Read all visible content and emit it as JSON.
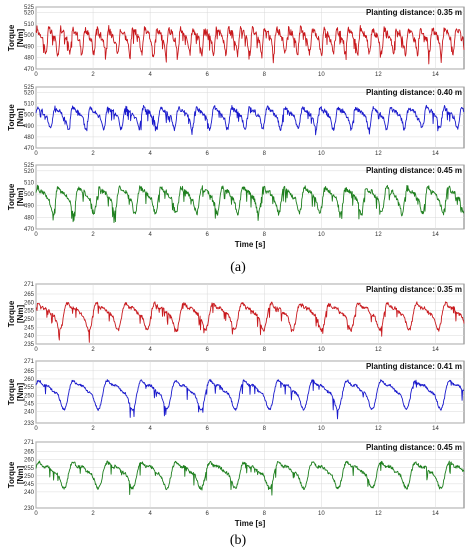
{
  "chart_data": [
    {
      "type": "line",
      "group": "a",
      "ylabel": "Torque\n[Nm]",
      "xlabel": "",
      "annotation": "Planting distance: 0.35 m",
      "xlim": [
        0,
        15
      ],
      "ylim": [
        470,
        525
      ],
      "yticks": [
        470,
        480,
        490,
        500,
        510,
        520,
        525
      ],
      "xticks": [
        0,
        2,
        4,
        6,
        8,
        10,
        12,
        14
      ],
      "grid": true,
      "series": [
        {
          "color": "#c8191d",
          "base": 497,
          "amp": 14,
          "period": 0.42,
          "noise": 6,
          "spike": 0.1
        }
      ]
    },
    {
      "type": "line",
      "group": "a",
      "ylabel": "Torque\n[Nm]",
      "xlabel": "",
      "annotation": "Planting distance: 0.40 m",
      "xlim": [
        0,
        15
      ],
      "ylim": [
        470,
        525
      ],
      "yticks": [
        470,
        480,
        490,
        500,
        510,
        520,
        525
      ],
      "xticks": [
        0,
        2,
        4,
        6,
        8,
        10,
        12,
        14
      ],
      "grid": true,
      "series": [
        {
          "color": "#1a1acc",
          "base": 499,
          "amp": 12,
          "period": 0.62,
          "noise": 4,
          "spike": 0.08
        }
      ]
    },
    {
      "type": "line",
      "group": "a",
      "ylabel": "Torque\n[Nm]",
      "xlabel": "Time [s]",
      "annotation": "Planting distance: 0.45 m",
      "xlim": [
        0,
        15
      ],
      "ylim": [
        470,
        525
      ],
      "yticks": [
        470,
        480,
        490,
        500,
        510,
        520,
        525
      ],
      "xticks": [
        0,
        2,
        4,
        6,
        8,
        10,
        12,
        14
      ],
      "grid": true,
      "series": [
        {
          "color": "#1e7f1e",
          "base": 497,
          "amp": 14,
          "period": 0.72,
          "noise": 4,
          "spike": 0.12
        }
      ]
    },
    {
      "type": "line",
      "group": "b",
      "ylabel": "Torque\n[Nm]",
      "xlabel": "",
      "annotation": "Planting distance: 0.35 m",
      "xlim": [
        0,
        15
      ],
      "ylim": [
        235,
        271
      ],
      "yticks": [
        235,
        240,
        245,
        250,
        255,
        260,
        265,
        271
      ],
      "xticks": [
        0,
        2,
        4,
        6,
        8,
        10,
        12,
        14
      ],
      "grid": true,
      "series": [
        {
          "color": "#c8191d",
          "base": 253,
          "amp": 10,
          "period": 1.02,
          "noise": 2,
          "spike": 0.06
        }
      ]
    },
    {
      "type": "line",
      "group": "b",
      "ylabel": "Torque\n[Nm]",
      "xlabel": "",
      "annotation": "Planting distance: 0.41 m",
      "xlim": [
        0,
        15
      ],
      "ylim": [
        233,
        271
      ],
      "yticks": [
        233,
        240,
        245,
        250,
        255,
        260,
        265,
        271
      ],
      "xticks": [
        0,
        2,
        4,
        6,
        8,
        10,
        12,
        14
      ],
      "grid": true,
      "series": [
        {
          "color": "#1a1acc",
          "base": 252,
          "amp": 11,
          "period": 1.2,
          "noise": 1.5,
          "spike": 0.04
        }
      ]
    },
    {
      "type": "line",
      "group": "b",
      "ylabel": "Torque\n[Nm]",
      "xlabel": "Time [s]",
      "annotation": "Planting distance: 0.45 m",
      "xlim": [
        0,
        15
      ],
      "ylim": [
        230,
        271
      ],
      "yticks": [
        230,
        240,
        245,
        250,
        255,
        260,
        265,
        271
      ],
      "xticks": [
        0,
        2,
        4,
        6,
        8,
        10,
        12,
        14
      ],
      "grid": true,
      "series": [
        {
          "color": "#1e7f1e",
          "base": 252,
          "amp": 10,
          "period": 1.2,
          "noise": 2,
          "spike": 0.05
        }
      ]
    }
  ],
  "captions": {
    "a": "(a)",
    "b": "(b)"
  }
}
